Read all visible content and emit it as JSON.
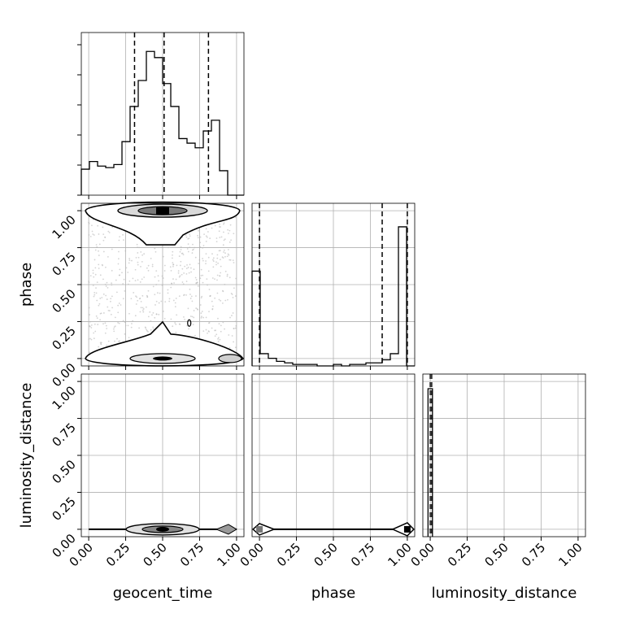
{
  "chart_data": {
    "type": "corner",
    "parameters": [
      "geocent_time",
      "phase",
      "luminosity_distance"
    ],
    "xlim": [
      -0.05,
      1.05
    ],
    "tick_values": [
      0.0,
      0.25,
      0.5,
      0.75,
      1.0
    ],
    "tick_labels": [
      "0.00",
      "0.25",
      "0.50",
      "0.75",
      "1.00"
    ],
    "grid": true,
    "marginals": [
      {
        "parameter": "geocent_time",
        "bins": 20,
        "range": [
          -0.05,
          1.05
        ],
        "heights": [
          0.17,
          0.22,
          0.19,
          0.18,
          0.2,
          0.35,
          0.58,
          0.75,
          0.94,
          0.9,
          0.73,
          0.58,
          0.37,
          0.34,
          0.31,
          0.42,
          0.49,
          0.16,
          0.0,
          0.0
        ],
        "quantile_lines": [
          0.31,
          0.51,
          0.81
        ]
      },
      {
        "parameter": "phase",
        "bins": 20,
        "range": [
          -0.05,
          1.05
        ],
        "heights": [
          0.62,
          0.08,
          0.05,
          0.03,
          0.02,
          0.01,
          0.01,
          0.01,
          0.0,
          0.0,
          0.01,
          0.0,
          0.01,
          0.01,
          0.02,
          0.02,
          0.04,
          0.08,
          0.91,
          0.0
        ],
        "quantile_lines": [
          0.0,
          0.83,
          1.0
        ]
      },
      {
        "parameter": "luminosity_distance",
        "bins": 20,
        "range": [
          -0.05,
          1.05
        ],
        "heights": [
          0.0,
          0.0,
          0.0,
          0.0,
          0.0,
          0.0,
          0.0,
          0.0,
          0.0,
          0.0,
          0.0,
          0.0,
          0.0,
          0.0,
          0.0,
          0.0,
          0.0,
          0.0,
          0.0,
          0.0
        ],
        "spike": {
          "x": 0.0,
          "width": 0.03,
          "height": 1.0
        },
        "quantile_lines": [
          0.0,
          0.01
        ]
      }
    ],
    "joint": [
      {
        "x": "geocent_time",
        "y": "phase",
        "scatter": "gray points spread over full [0,1]x[0,1] square",
        "contour_bands": [
          {
            "y_center": 1.0,
            "peak_x": 0.5
          },
          {
            "y_center": 0.0,
            "peak_x": 0.5
          }
        ]
      },
      {
        "x": "geocent_time",
        "y": "luminosity_distance",
        "contour_bands": [
          {
            "y_center": 0.0,
            "peak_x": 0.5
          }
        ]
      },
      {
        "x": "phase",
        "y": "luminosity_distance",
        "contour_bands": [
          {
            "y_center": 0.0,
            "peak_x": [
              0.0,
              1.0
            ]
          }
        ]
      }
    ]
  }
}
